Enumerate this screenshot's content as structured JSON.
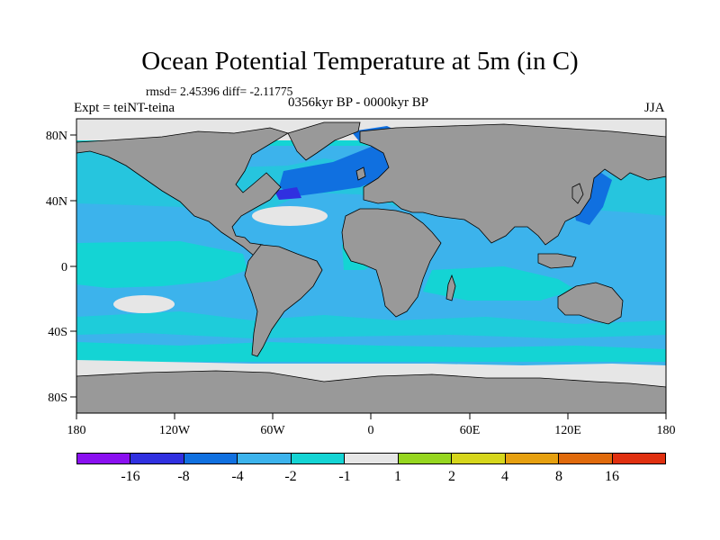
{
  "map": {
    "title": "Ocean Potential Temperature at 5m (in C)",
    "stats": "rmsd= 2.45396 diff= -2.11775",
    "experiment": "Expt = teiNT-teina",
    "period": "0356kyr BP - 0000kyr BP",
    "season": "JJA",
    "projection": "cylindrical equidistant",
    "lon_range": [
      -180,
      180
    ],
    "lat_range": [
      -90,
      90
    ],
    "lon_ticks": [
      "180",
      "120W",
      "60W",
      "0",
      "60E",
      "120E",
      "180"
    ],
    "lat_ticks": [
      "80N",
      "40N",
      "0",
      "40S",
      "80S"
    ],
    "land_color": "#999999",
    "ocean_base_color": "#3cb3ec"
  },
  "colorbar": {
    "colors": [
      "#8a10f0",
      "#3030e0",
      "#1070e0",
      "#3cb3ec",
      "#14d4d4",
      "#e6e6e6",
      "#96d620",
      "#d6d61c",
      "#e6a010",
      "#e06a0c",
      "#e03010"
    ],
    "labels": [
      "-16",
      "-8",
      "-4",
      "-2",
      "-1",
      "1",
      "2",
      "4",
      "8",
      "16"
    ]
  }
}
